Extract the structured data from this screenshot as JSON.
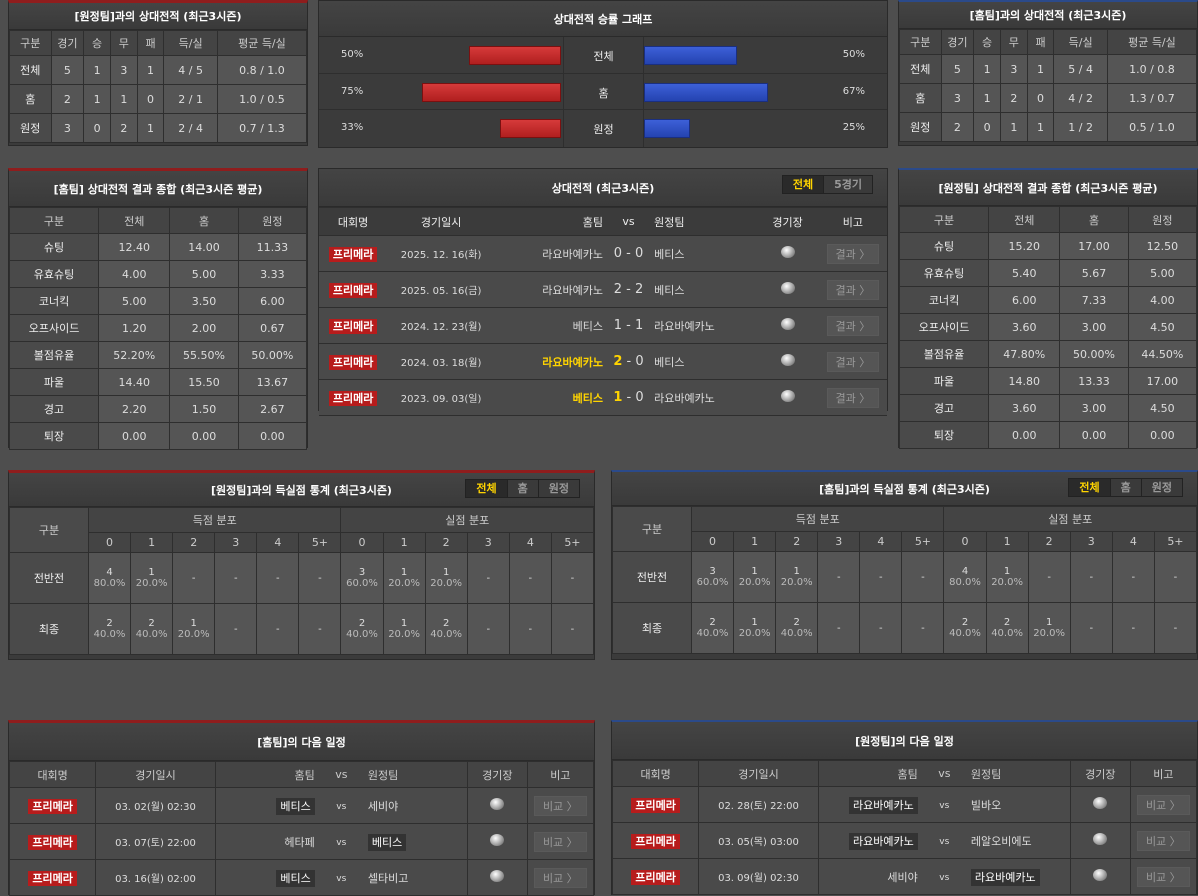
{
  "colors": {
    "home_accent": "#8f1d1d",
    "away_accent": "#2b4a8a",
    "bar_home": "#c62828",
    "bar_away": "#2e4fc4",
    "highlight": "#ffd400"
  },
  "h2h_away": {
    "title": "[원정팀]과의 상대전적 (최근3시즌)",
    "headers": [
      "구분",
      "경기",
      "승",
      "무",
      "패",
      "득/실",
      "평균 득/실"
    ],
    "rows": [
      [
        "전체",
        "5",
        "1",
        "3",
        "1",
        "4 / 5",
        "0.8 / 1.0"
      ],
      [
        "홈",
        "2",
        "1",
        "1",
        "0",
        "2 / 1",
        "1.0 / 0.5"
      ],
      [
        "원정",
        "3",
        "0",
        "2",
        "1",
        "2 / 4",
        "0.7 / 1.3"
      ]
    ]
  },
  "h2h_home": {
    "title": "[홈팀]과의 상대전적 (최근3시즌)",
    "headers": [
      "구분",
      "경기",
      "승",
      "무",
      "패",
      "득/실",
      "평균 득/실"
    ],
    "rows": [
      [
        "전체",
        "5",
        "1",
        "3",
        "1",
        "5 / 4",
        "1.0 / 0.8"
      ],
      [
        "홈",
        "3",
        "1",
        "2",
        "0",
        "4 / 2",
        "1.3 / 0.7"
      ],
      [
        "원정",
        "2",
        "0",
        "1",
        "1",
        "1 / 2",
        "0.5 / 1.0"
      ]
    ]
  },
  "graph": {
    "title": "상대전적 승률 그래프",
    "rows": [
      {
        "label": "전체",
        "home_pct": 50,
        "away_pct": 50,
        "home_text": "50%",
        "away_text": "50%"
      },
      {
        "label": "홈",
        "home_pct": 75,
        "away_pct": 67,
        "home_text": "75%",
        "away_text": "67%"
      },
      {
        "label": "원정",
        "home_pct": 33,
        "away_pct": 25,
        "home_text": "33%",
        "away_text": "25%"
      }
    ]
  },
  "summary_home": {
    "title": "[홈팀] 상대전적 결과 종합 (최근3시즌 평균)",
    "headers": [
      "구분",
      "전체",
      "홈",
      "원정"
    ],
    "rows": [
      [
        "슈팅",
        "12.40",
        "14.00",
        "11.33"
      ],
      [
        "유효슈팅",
        "4.00",
        "5.00",
        "3.33"
      ],
      [
        "코너킥",
        "5.00",
        "3.50",
        "6.00"
      ],
      [
        "오프사이드",
        "1.20",
        "2.00",
        "0.67"
      ],
      [
        "볼점유율",
        "52.20%",
        "55.50%",
        "50.00%"
      ],
      [
        "파울",
        "14.40",
        "15.50",
        "13.67"
      ],
      [
        "경고",
        "2.20",
        "1.50",
        "2.67"
      ],
      [
        "퇴장",
        "0.00",
        "0.00",
        "0.00"
      ]
    ]
  },
  "summary_away": {
    "title": "[원정팀] 상대전적 결과 종합 (최근3시즌 평균)",
    "headers": [
      "구분",
      "전체",
      "홈",
      "원정"
    ],
    "rows": [
      [
        "슈팅",
        "15.20",
        "17.00",
        "12.50"
      ],
      [
        "유효슈팅",
        "5.40",
        "5.67",
        "5.00"
      ],
      [
        "코너킥",
        "6.00",
        "7.33",
        "4.00"
      ],
      [
        "오프사이드",
        "3.60",
        "3.00",
        "4.50"
      ],
      [
        "볼점유율",
        "47.80%",
        "50.00%",
        "44.50%"
      ],
      [
        "파울",
        "14.80",
        "13.33",
        "17.00"
      ],
      [
        "경고",
        "3.60",
        "3.00",
        "4.50"
      ],
      [
        "퇴장",
        "0.00",
        "0.00",
        "0.00"
      ]
    ]
  },
  "matches": {
    "title": "상대전적 (최근3시즌)",
    "tabs": [
      "전체",
      "5경기"
    ],
    "headers": [
      "대회명",
      "경기일시",
      "홈팀",
      "vs",
      "원정팀",
      "경기장",
      "비고"
    ],
    "button": "결과 〉",
    "rows": [
      {
        "league": "프리메라",
        "date": "2025. 12. 16(화)",
        "home": "라요바예카노",
        "hs": "0",
        "as": "0",
        "away": "베티스",
        "winner": ""
      },
      {
        "league": "프리메라",
        "date": "2025. 05. 16(금)",
        "home": "라요바예카노",
        "hs": "2",
        "as": "2",
        "away": "베티스",
        "winner": ""
      },
      {
        "league": "프리메라",
        "date": "2024. 12. 23(월)",
        "home": "베티스",
        "hs": "1",
        "as": "1",
        "away": "라요바예카노",
        "winner": ""
      },
      {
        "league": "프리메라",
        "date": "2024. 03. 18(월)",
        "home": "라요바예카노",
        "hs": "2",
        "as": "0",
        "away": "베티스",
        "winner": "home"
      },
      {
        "league": "프리메라",
        "date": "2023. 09. 03(일)",
        "home": "베티스",
        "hs": "1",
        "as": "0",
        "away": "라요바예카노",
        "winner": "home"
      }
    ]
  },
  "goals_away": {
    "title": "[원정팀]과의 득실점 통계 (최근3시즌)",
    "tabs": [
      "전체",
      "홈",
      "원정"
    ],
    "label": "구분",
    "group1": "득점 분포",
    "group2": "실점 분포",
    "cols": [
      "0",
      "1",
      "2",
      "3",
      "4",
      "5+",
      "0",
      "1",
      "2",
      "3",
      "4",
      "5+"
    ],
    "rows": [
      {
        "label": "전반전",
        "cells": [
          [
            "4",
            "80.0%"
          ],
          [
            "1",
            "20.0%"
          ],
          [
            "-"
          ],
          [
            "-"
          ],
          [
            "-"
          ],
          [
            "-"
          ],
          [
            "3",
            "60.0%"
          ],
          [
            "1",
            "20.0%"
          ],
          [
            "1",
            "20.0%"
          ],
          [
            "-"
          ],
          [
            "-"
          ],
          [
            "-"
          ]
        ]
      },
      {
        "label": "최종",
        "cells": [
          [
            "2",
            "40.0%"
          ],
          [
            "2",
            "40.0%"
          ],
          [
            "1",
            "20.0%"
          ],
          [
            "-"
          ],
          [
            "-"
          ],
          [
            "-"
          ],
          [
            "2",
            "40.0%"
          ],
          [
            "1",
            "20.0%"
          ],
          [
            "2",
            "40.0%"
          ],
          [
            "-"
          ],
          [
            "-"
          ],
          [
            "-"
          ]
        ]
      }
    ]
  },
  "goals_home": {
    "title": "[홈팀]과의 득실점 통계 (최근3시즌)",
    "tabs": [
      "전체",
      "홈",
      "원정"
    ],
    "label": "구분",
    "group1": "득점 분포",
    "group2": "실점 분포",
    "cols": [
      "0",
      "1",
      "2",
      "3",
      "4",
      "5+",
      "0",
      "1",
      "2",
      "3",
      "4",
      "5+"
    ],
    "rows": [
      {
        "label": "전반전",
        "cells": [
          [
            "3",
            "60.0%"
          ],
          [
            "1",
            "20.0%"
          ],
          [
            "1",
            "20.0%"
          ],
          [
            "-"
          ],
          [
            "-"
          ],
          [
            "-"
          ],
          [
            "4",
            "80.0%"
          ],
          [
            "1",
            "20.0%"
          ],
          [
            "-"
          ],
          [
            "-"
          ],
          [
            "-"
          ],
          [
            "-"
          ]
        ]
      },
      {
        "label": "최종",
        "cells": [
          [
            "2",
            "40.0%"
          ],
          [
            "1",
            "20.0%"
          ],
          [
            "2",
            "40.0%"
          ],
          [
            "-"
          ],
          [
            "-"
          ],
          [
            "-"
          ],
          [
            "2",
            "40.0%"
          ],
          [
            "2",
            "40.0%"
          ],
          [
            "1",
            "20.0%"
          ],
          [
            "-"
          ],
          [
            "-"
          ],
          [
            "-"
          ]
        ]
      }
    ]
  },
  "next_home": {
    "title": "[홈팀]의 다음 일정",
    "headers": [
      "대회명",
      "경기일시",
      "홈팀",
      "vs",
      "원정팀",
      "경기장",
      "비고"
    ],
    "button": "비교 〉",
    "rows": [
      {
        "league": "프리메라",
        "date": "03. 02(월) 02:30",
        "home": "베티스",
        "away": "세비야",
        "team": "home"
      },
      {
        "league": "프리메라",
        "date": "03. 07(토) 22:00",
        "home": "헤타페",
        "away": "베티스",
        "team": "away"
      },
      {
        "league": "프리메라",
        "date": "03. 16(월) 02:00",
        "home": "베티스",
        "away": "셀타비고",
        "team": "home"
      }
    ]
  },
  "next_away": {
    "title": "[원정팀]의 다음 일정",
    "headers": [
      "대회명",
      "경기일시",
      "홈팀",
      "vs",
      "원정팀",
      "경기장",
      "비고"
    ],
    "button": "비교 〉",
    "rows": [
      {
        "league": "프리메라",
        "date": "02. 28(토) 22:00",
        "home": "라요바예카노",
        "away": "빌바오",
        "team": "home"
      },
      {
        "league": "프리메라",
        "date": "03. 05(목) 03:00",
        "home": "라요바예카노",
        "away": "레알오비에도",
        "team": "home"
      },
      {
        "league": "프리메라",
        "date": "03. 09(월) 02:30",
        "home": "세비야",
        "away": "라요바예카노",
        "team": "away"
      }
    ]
  }
}
